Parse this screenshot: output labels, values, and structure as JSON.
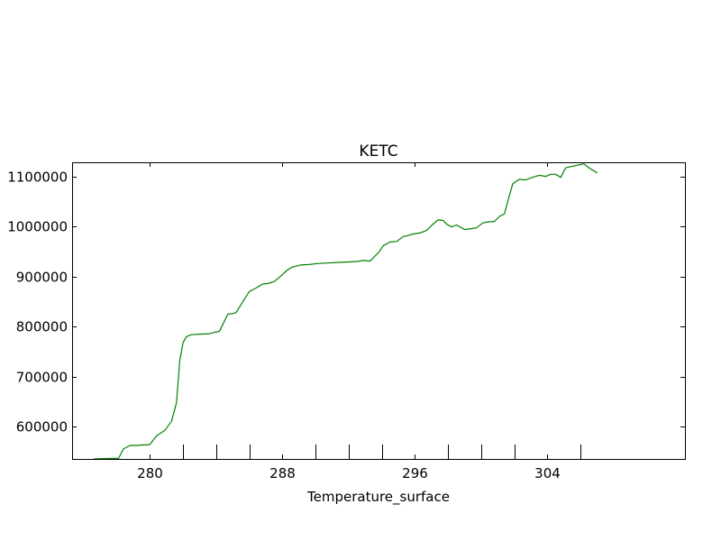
{
  "chart_data": {
    "type": "line",
    "title": "KETC",
    "xlabel": "Temperature_surface",
    "ylabel": "",
    "xlim": [
      275.3,
      312.3
    ],
    "ylim": [
      536000,
      1128000
    ],
    "x_ticks": [
      280,
      288,
      296,
      304
    ],
    "y_ticks": [
      600000,
      700000,
      800000,
      900000,
      1000000,
      1100000
    ],
    "grid": false,
    "colors": {
      "line": "#008000",
      "axes": "#000000",
      "background": "#ffffff"
    },
    "series": [
      {
        "x": [
          276.6,
          277.6,
          278.1,
          278.4,
          278.8,
          279.2,
          279.6,
          279.9,
          280.0,
          280.4,
          280.9,
          281.3,
          281.6,
          281.8,
          282.0,
          282.2,
          282.5,
          283.0,
          283.6,
          284.2,
          284.7,
          285.0,
          285.2,
          285.8,
          286.0,
          286.4,
          286.8,
          287.1,
          287.5,
          287.8,
          288.3,
          288.6,
          289.1,
          289.6,
          290.1,
          290.7,
          291.3,
          291.9,
          292.5,
          292.9,
          293.3,
          293.5,
          293.8,
          294.1,
          294.5,
          294.9,
          295.3,
          295.6,
          295.9,
          296.3,
          296.7,
          297.1,
          297.4,
          297.7,
          297.9,
          298.2,
          298.5,
          299.0,
          299.3,
          299.7,
          300.1,
          300.4,
          300.8,
          301.1,
          301.4,
          301.6,
          301.9,
          302.3,
          302.7,
          303.1,
          303.5,
          303.9,
          304.2,
          304.5,
          304.8,
          305.1,
          305.5,
          305.8,
          306.2,
          306.5,
          307.0
        ],
        "y": [
          536000,
          537000,
          537000,
          556000,
          563000,
          563000,
          564000,
          564000,
          565000,
          582000,
          593000,
          611000,
          648000,
          733000,
          768000,
          780000,
          784000,
          785000,
          786000,
          791000,
          825000,
          826000,
          828000,
          860000,
          870000,
          877000,
          885000,
          886000,
          890000,
          898000,
          913000,
          919000,
          923000,
          924000,
          926000,
          927000,
          928000,
          929000,
          930000,
          932000,
          931000,
          938000,
          948000,
          962000,
          969000,
          970000,
          980000,
          982000,
          985000,
          987000,
          992000,
          1005000,
          1013000,
          1012000,
          1005000,
          999000,
          1003000,
          994000,
          995000,
          997000,
          1007000,
          1009000,
          1010000,
          1020000,
          1025000,
          1050000,
          1085000,
          1094000,
          1093000,
          1098000,
          1102000,
          1100000,
          1104000,
          1104000,
          1098000,
          1117000,
          1120000,
          1122000,
          1125000,
          1117000,
          1107000
        ]
      }
    ]
  }
}
